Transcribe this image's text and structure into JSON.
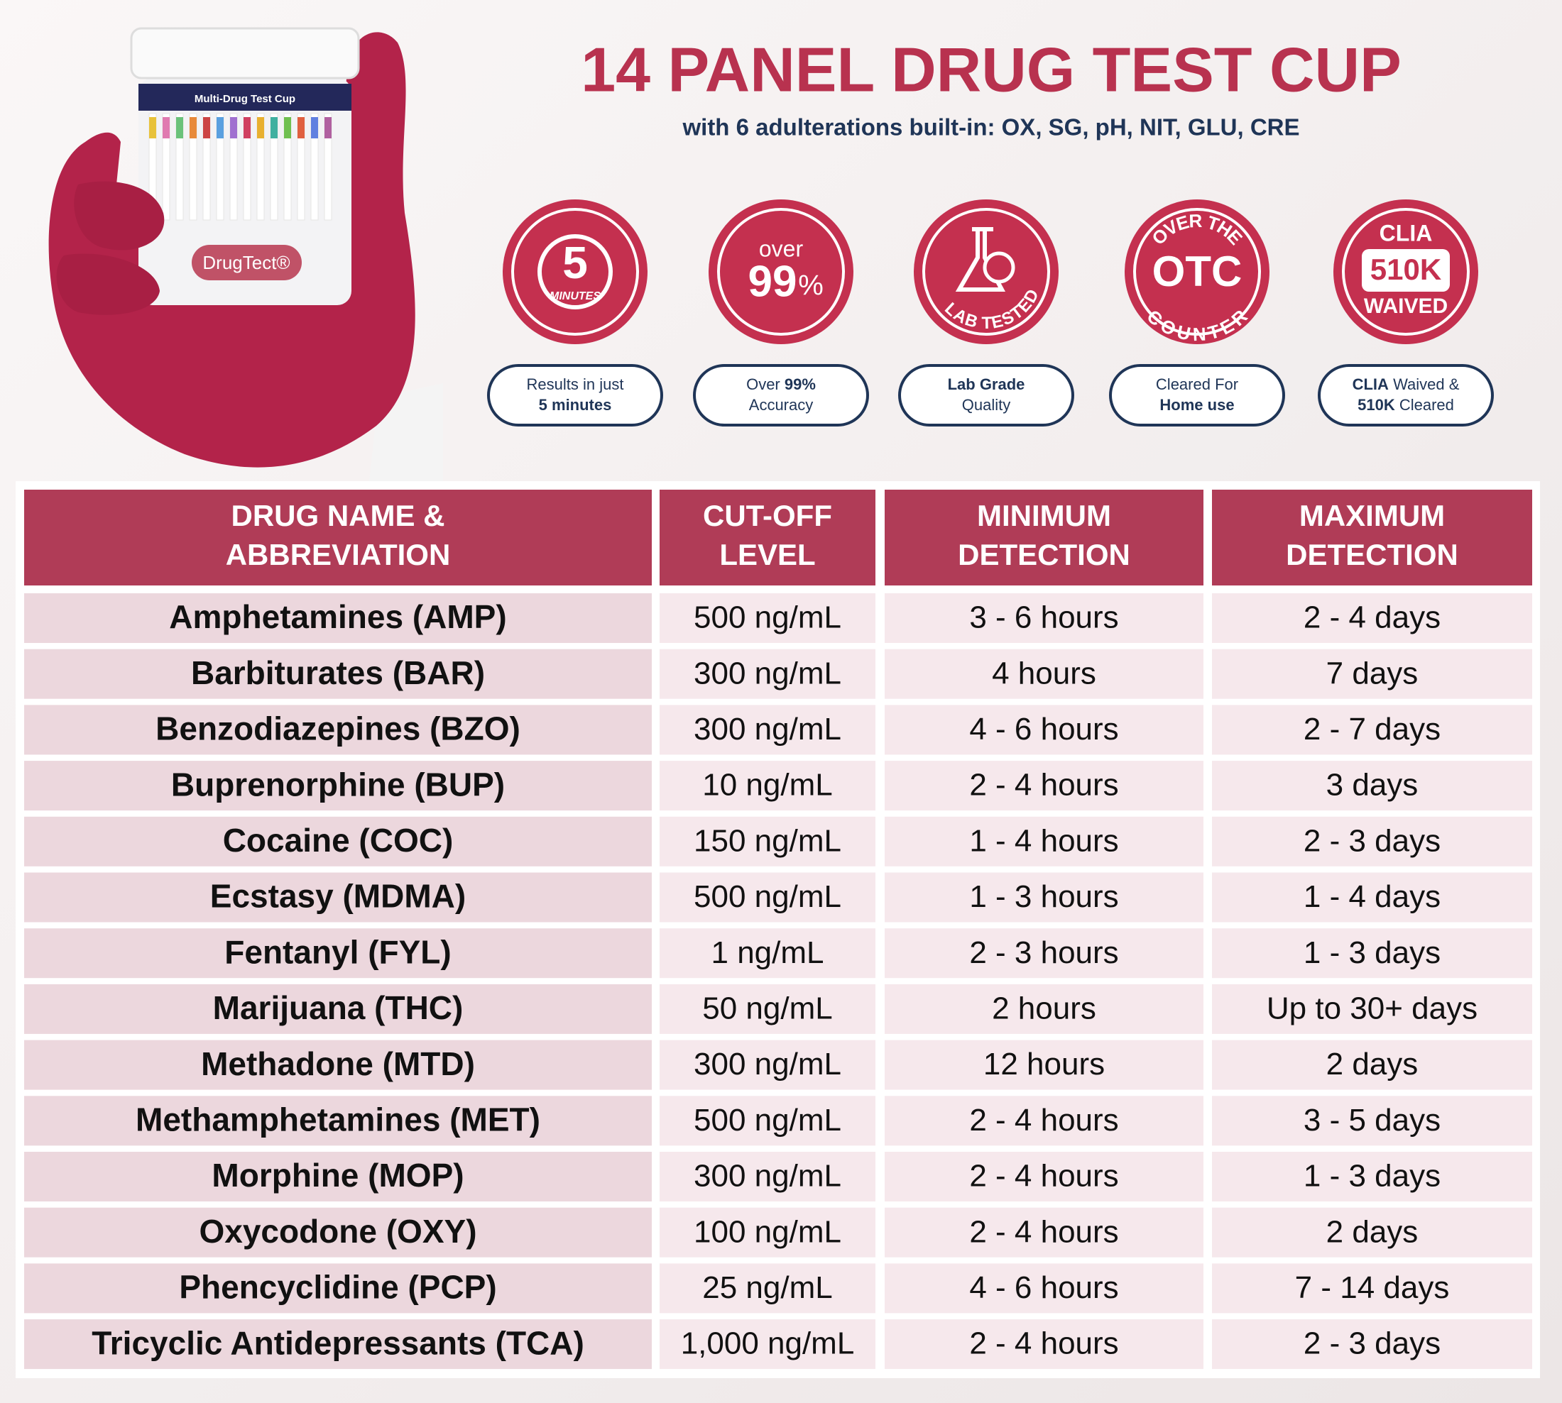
{
  "header": {
    "title": "14 PANEL DRUG TEST CUP",
    "subtitle": "with 6 adulterations built-in: OX, SG, pH, NIT, GLU, CRE"
  },
  "product": {
    "cup_label": "Multi-Drug Test Cup",
    "brand": "DrugTect®"
  },
  "badges": [
    {
      "icon": [
        "5",
        "MINUTES"
      ],
      "caption": [
        [
          "Results in just"
        ],
        [
          "5 minutes"
        ]
      ]
    },
    {
      "icon": [
        "over",
        "99",
        "%"
      ],
      "caption": [
        [
          "Over",
          "99%"
        ],
        [
          "Accuracy"
        ]
      ]
    },
    {
      "icon": [
        "LAB TESTED"
      ],
      "caption": [
        [
          "Lab Grade"
        ],
        [
          "Quality"
        ]
      ]
    },
    {
      "icon": [
        "OVER THE",
        "OTC",
        "COUNTER"
      ],
      "caption": [
        [
          "Cleared For"
        ],
        [
          "Home use"
        ]
      ]
    },
    {
      "icon": [
        "CLIA",
        "510K",
        "WAIVED"
      ],
      "caption": [
        [
          "CLIA",
          "Waived &"
        ],
        [
          "510K",
          "Cleared"
        ]
      ]
    }
  ],
  "table": {
    "header": [
      [
        "DRUG NAME &",
        "ABBREVIATION"
      ],
      [
        "CUT-OFF",
        "LEVEL"
      ],
      [
        "MINIMUM",
        "DETECTION"
      ],
      [
        "MAXIMUM",
        "DETECTION"
      ]
    ],
    "rows": [
      [
        "Amphetamines (AMP)",
        "500 ng/mL",
        "3 - 6 hours",
        "2 - 4 days"
      ],
      [
        "Barbiturates (BAR)",
        "300 ng/mL",
        "4 hours",
        "7 days"
      ],
      [
        "Benzodiazepines (BZO)",
        "300 ng/mL",
        "4 - 6 hours",
        "2 - 7 days"
      ],
      [
        "Buprenorphine (BUP)",
        "10 ng/mL",
        "2 - 4 hours",
        "3 days"
      ],
      [
        "Cocaine (COC)",
        "150 ng/mL",
        "1 - 4 hours",
        "2 - 3 days"
      ],
      [
        "Ecstasy (MDMA)",
        "500 ng/mL",
        "1 - 3 hours",
        "1 - 4 days"
      ],
      [
        "Fentanyl (FYL)",
        "1 ng/mL",
        "2 - 3 hours",
        "1 - 3 days"
      ],
      [
        "Marijuana (THC)",
        "50 ng/mL",
        "2 hours",
        "Up to 30+ days"
      ],
      [
        "Methadone (MTD)",
        "300 ng/mL",
        "12 hours",
        "2 days"
      ],
      [
        "Methamphetamines (MET)",
        "500 ng/mL",
        "2 - 4 hours",
        "3 - 5 days"
      ],
      [
        "Morphine (MOP)",
        "300 ng/mL",
        "2 - 4 hours",
        "1 - 3 days"
      ],
      [
        "Oxycodone (OXY)",
        "100 ng/mL",
        "2 - 4 hours",
        "2 days"
      ],
      [
        "Phencyclidine (PCP)",
        "25 ng/mL",
        "4 - 6 hours",
        "7 - 14 days"
      ],
      [
        "Tricyclic Antidepressants (TCA)",
        "1,000 ng/mL",
        "2 - 4 hours",
        "2 - 3 days"
      ]
    ]
  }
}
